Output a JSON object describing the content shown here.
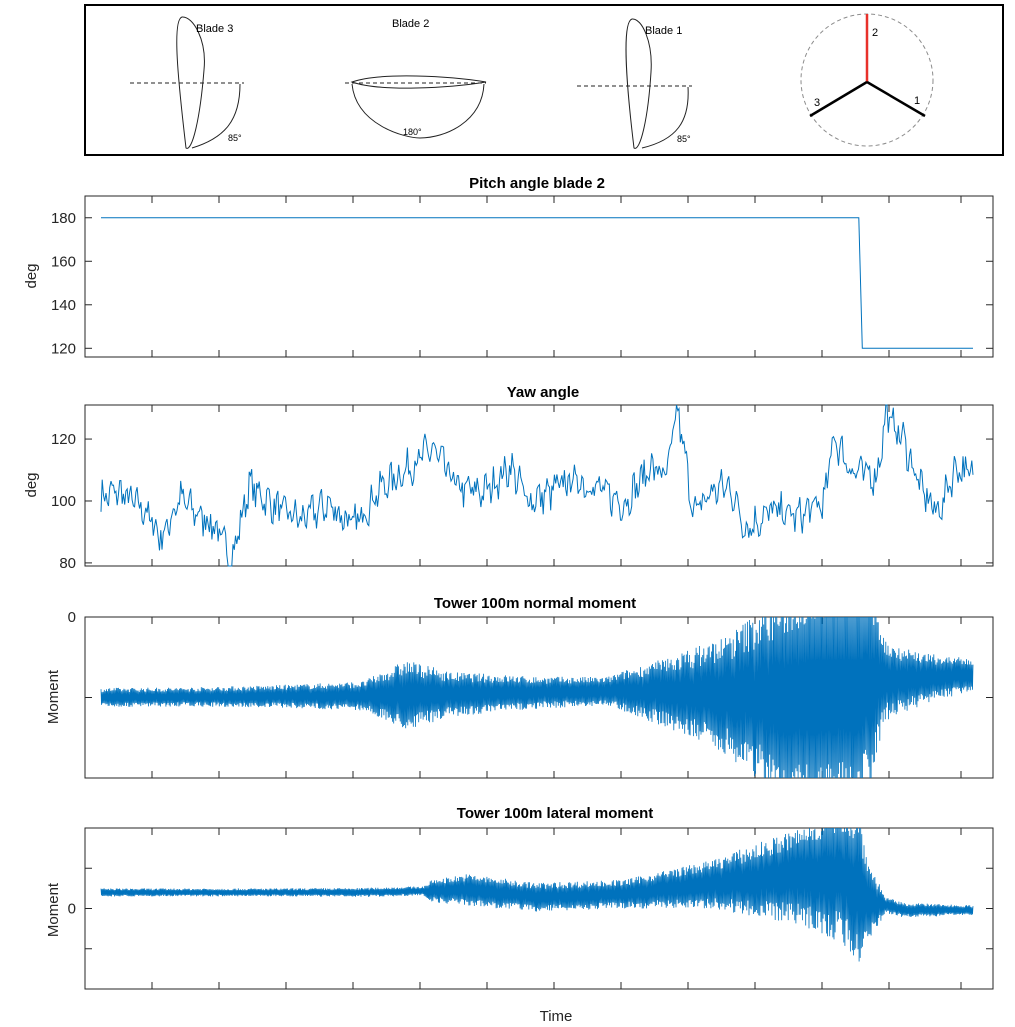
{
  "diagram": {
    "blade3_label": "Blade 3",
    "blade2_label": "Blade 2",
    "blade1_label": "Blade 1",
    "angle3": "85°",
    "angle2": "180°",
    "angle1": "85°",
    "hub_num_2": "2",
    "hub_num_3": "3",
    "hub_num_1": "1",
    "colors": {
      "highlight": "#e8312a",
      "line": "#000000",
      "circle": "#8c8c8c"
    }
  },
  "chart_data": [
    {
      "type": "line",
      "title": "Pitch angle blade 2",
      "ylabel": "deg",
      "ylim": [
        116,
        190
      ],
      "yticks": [
        "120",
        "140",
        "160",
        "180"
      ],
      "xlabel": "",
      "series": [
        {
          "values": [
            [
              0,
              180
            ],
            [
              0.869,
              180
            ],
            [
              0.873,
              120
            ],
            [
              1.0,
              120
            ]
          ]
        }
      ],
      "color": "#0072bd"
    },
    {
      "type": "line",
      "title": "Yaw angle",
      "ylabel": "deg",
      "ylim": [
        79,
        131
      ],
      "yticks": [
        "80",
        "100",
        "120"
      ],
      "xlabel": "",
      "series": [
        {
          "values": [
            [
              0,
              101
            ],
            [
              0.02,
              103
            ],
            [
              0.05,
              97
            ],
            [
              0.07,
              88
            ],
            [
              0.09,
              101
            ],
            [
              0.11,
              96
            ],
            [
              0.13,
              92
            ],
            [
              0.15,
              81
            ],
            [
              0.17,
              105
            ],
            [
              0.2,
              98
            ],
            [
              0.23,
              94
            ],
            [
              0.26,
              99
            ],
            [
              0.29,
              92
            ],
            [
              0.32,
              104
            ],
            [
              0.35,
              110
            ],
            [
              0.38,
              117
            ],
            [
              0.41,
              104
            ],
            [
              0.44,
              103
            ],
            [
              0.47,
              111
            ],
            [
              0.49,
              100
            ],
            [
              0.51,
              102
            ],
            [
              0.54,
              107
            ],
            [
              0.57,
              104
            ],
            [
              0.6,
              99
            ],
            [
              0.63,
              111
            ],
            [
              0.65,
              108
            ],
            [
              0.66,
              131
            ],
            [
              0.68,
              96
            ],
            [
              0.7,
              103
            ],
            [
              0.72,
              105
            ],
            [
              0.74,
              91
            ],
            [
              0.77,
              97
            ],
            [
              0.8,
              95
            ],
            [
              0.83,
              100
            ],
            [
              0.84,
              121
            ],
            [
              0.86,
              110
            ],
            [
              0.89,
              108
            ],
            [
              0.9,
              128
            ],
            [
              0.92,
              120
            ],
            [
              0.94,
              104
            ],
            [
              0.96,
              96
            ],
            [
              0.98,
              111
            ],
            [
              1.0,
              108
            ]
          ]
        }
      ],
      "color": "#0072bd"
    },
    {
      "type": "line",
      "title": "Tower 100m normal moment",
      "ylabel": "Moment",
      "ylim": [
        -1,
        0
      ],
      "yticks": [
        "0"
      ],
      "xlabel": "",
      "envelope": [
        [
          0,
          0.06
        ],
        [
          0.1,
          0.06
        ],
        [
          0.2,
          0.07
        ],
        [
          0.3,
          0.09
        ],
        [
          0.35,
          0.22
        ],
        [
          0.4,
          0.14
        ],
        [
          0.5,
          0.1
        ],
        [
          0.58,
          0.09
        ],
        [
          0.65,
          0.22
        ],
        [
          0.72,
          0.38
        ],
        [
          0.8,
          0.75
        ],
        [
          0.85,
          0.85
        ],
        [
          0.88,
          0.7
        ],
        [
          0.9,
          0.25
        ],
        [
          0.95,
          0.15
        ],
        [
          1.0,
          0.1
        ]
      ],
      "center": [
        [
          0,
          -0.5
        ],
        [
          0.3,
          -0.49
        ],
        [
          0.6,
          -0.46
        ],
        [
          0.8,
          -0.5
        ],
        [
          0.87,
          -0.4
        ],
        [
          0.92,
          -0.39
        ],
        [
          1.0,
          -0.36
        ]
      ],
      "color": "#0072bd"
    },
    {
      "type": "line",
      "title": "Tower 100m lateral moment",
      "ylabel": "Moment",
      "xlabel": "Time",
      "ylim": [
        -1,
        1
      ],
      "yticks": [
        "0"
      ],
      "envelope": [
        [
          0,
          0.05
        ],
        [
          0.2,
          0.05
        ],
        [
          0.37,
          0.06
        ],
        [
          0.38,
          0.14
        ],
        [
          0.42,
          0.2
        ],
        [
          0.5,
          0.18
        ],
        [
          0.6,
          0.18
        ],
        [
          0.7,
          0.3
        ],
        [
          0.8,
          0.6
        ],
        [
          0.87,
          1.0
        ],
        [
          0.88,
          0.5
        ],
        [
          0.9,
          0.1
        ],
        [
          1.0,
          0.06
        ]
      ],
      "center": [
        [
          0,
          0.2
        ],
        [
          0.3,
          0.2
        ],
        [
          0.42,
          0.23
        ],
        [
          0.5,
          0.14
        ],
        [
          0.6,
          0.18
        ],
        [
          0.7,
          0.3
        ],
        [
          0.8,
          0.4
        ],
        [
          0.85,
          0.45
        ],
        [
          0.88,
          0.1
        ],
        [
          0.92,
          -0.02
        ],
        [
          1.0,
          -0.02
        ]
      ],
      "color": "#0072bd"
    }
  ]
}
